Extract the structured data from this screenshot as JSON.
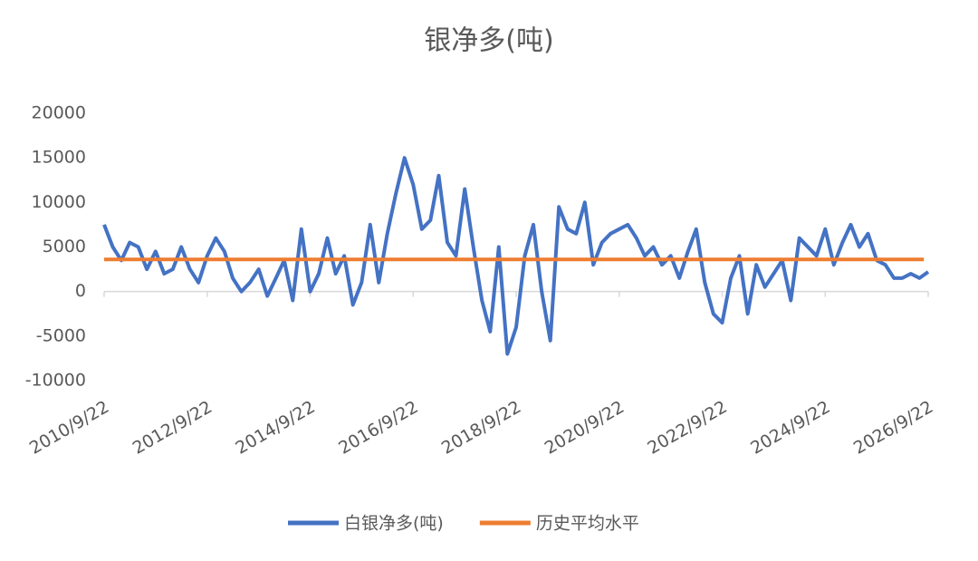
{
  "chart_data": {
    "type": "line",
    "title": "银净多(吨)",
    "xlim": [
      "2010/9/22",
      "2026/9/22"
    ],
    "xticks": [
      "2010/9/22",
      "2012/9/22",
      "2014/9/22",
      "2016/9/22",
      "2018/9/22",
      "2020/9/22",
      "2022/9/22",
      "2024/9/22",
      "2026/9/22"
    ],
    "ylim": [
      -10000,
      20000
    ],
    "yticks": [
      -10000,
      -5000,
      0,
      5000,
      10000,
      15000,
      20000
    ],
    "legend": "bottom",
    "series": [
      {
        "name": "白银净多(吨)",
        "color": "#4472c4",
        "x": [
          "2010/9/22",
          "2010/11/22",
          "2011/1/22",
          "2011/3/22",
          "2011/5/22",
          "2011/7/22",
          "2011/9/22",
          "2011/11/22",
          "2012/1/22",
          "2012/3/22",
          "2012/5/22",
          "2012/7/22",
          "2012/9/22",
          "2012/11/22",
          "2013/1/22",
          "2013/3/22",
          "2013/5/22",
          "2013/7/22",
          "2013/9/22",
          "2013/11/22",
          "2014/1/22",
          "2014/3/22",
          "2014/5/22",
          "2014/7/22",
          "2014/9/22",
          "2014/11/22",
          "2015/1/22",
          "2015/3/22",
          "2015/5/22",
          "2015/7/22",
          "2015/9/22",
          "2015/11/22",
          "2016/1/22",
          "2016/3/22",
          "2016/5/22",
          "2016/7/22",
          "2016/9/22",
          "2016/11/22",
          "2017/1/22",
          "2017/3/22",
          "2017/5/22",
          "2017/7/22",
          "2017/9/22",
          "2017/11/22",
          "2018/1/22",
          "2018/3/22",
          "2018/5/22",
          "2018/7/22",
          "2018/9/22",
          "2018/11/22",
          "2019/1/22",
          "2019/3/22",
          "2019/5/22",
          "2019/7/22",
          "2019/9/22",
          "2019/11/22",
          "2020/1/22",
          "2020/3/22",
          "2020/5/22",
          "2020/7/22",
          "2020/9/22",
          "2020/11/22",
          "2021/1/22",
          "2021/3/22",
          "2021/5/22",
          "2021/7/22",
          "2021/9/22",
          "2021/11/22",
          "2022/1/22",
          "2022/3/22",
          "2022/5/22",
          "2022/7/22",
          "2022/9/22",
          "2022/11/22",
          "2023/1/22",
          "2023/3/22",
          "2023/5/22",
          "2023/7/22",
          "2023/9/22",
          "2023/11/22",
          "2024/1/22",
          "2024/3/22",
          "2024/5/22",
          "2024/7/22",
          "2024/9/22",
          "2024/11/22",
          "2025/1/22",
          "2025/3/22",
          "2025/5/22",
          "2025/7/22",
          "2025/9/22",
          "2025/11/22",
          "2026/1/22",
          "2026/3/22",
          "2026/5/22",
          "2026/7/22",
          "2026/9/22"
        ],
        "values": [
          7500,
          5000,
          3500,
          5500,
          5000,
          2500,
          4500,
          2000,
          2500,
          5000,
          2500,
          1000,
          4000,
          6000,
          4500,
          1500,
          0,
          1000,
          2500,
          -500,
          1500,
          3500,
          -1000,
          7000,
          0,
          2000,
          6000,
          2000,
          4000,
          -1500,
          1000,
          7500,
          1000,
          6500,
          11000,
          15000,
          12000,
          7000,
          8000,
          13000,
          5500,
          4000,
          11500,
          5000,
          -1000,
          -4500,
          5000,
          -7000,
          -4000,
          4000,
          7500,
          0,
          -5500,
          9500,
          7000,
          6500,
          10000,
          3000,
          5500,
          6500,
          7000,
          7500,
          6000,
          4000,
          5000,
          3000,
          4000,
          1500,
          4500,
          7000,
          1000,
          -2500,
          -3500,
          1500,
          4000,
          -2500,
          3000,
          500,
          2000,
          3500,
          -1000,
          6000,
          5000,
          4000,
          7000,
          3000,
          5500,
          7500,
          5000,
          6500,
          3500,
          3000,
          1500,
          1500,
          2000,
          1500,
          2200
        ]
      },
      {
        "name": "历史平均水平",
        "color": "#ed7d31",
        "x": [
          "2010/9/22",
          "2026/8/22"
        ],
        "values": [
          3600,
          3600
        ]
      }
    ]
  }
}
